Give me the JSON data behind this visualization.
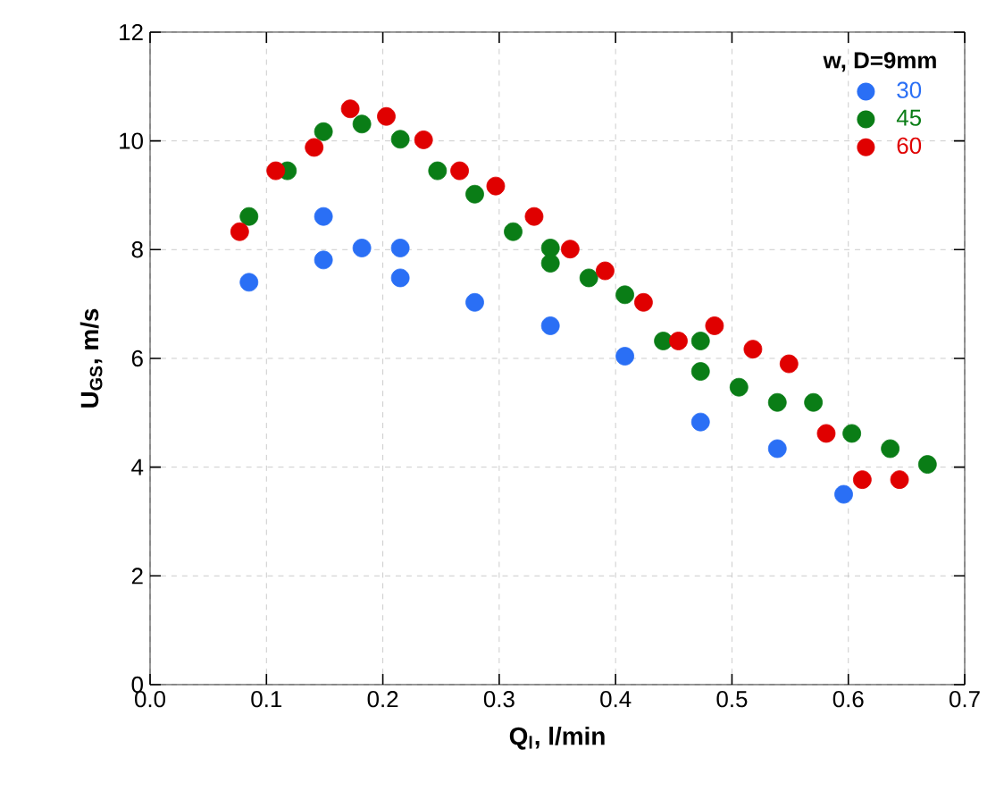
{
  "chart_data": {
    "type": "scatter",
    "xlabel": "**Q$_{l}$, l/min**",
    "ylabel": "**U$_{GS}$, m/s**",
    "legend_title": "**w, D=9mm**",
    "xlim": [
      0,
      0.7
    ],
    "ylim": [
      0,
      12
    ],
    "xticks": [
      {
        "value": 0,
        "label": "0.0"
      },
      {
        "value": 0.1,
        "label": "0.1"
      },
      {
        "value": 0.2,
        "label": "0.2"
      },
      {
        "value": 0.3,
        "label": "0.3"
      },
      {
        "value": 0.4,
        "label": "0.4"
      },
      {
        "value": 0.5,
        "label": "0.5"
      },
      {
        "value": 0.6,
        "label": "0.6"
      },
      {
        "value": 0.7,
        "label": "0.7"
      }
    ],
    "yticks": [
      0,
      2,
      4,
      6,
      8,
      10,
      12
    ],
    "grid": true,
    "legend": "top right",
    "marker": "circle",
    "series": [
      {
        "name": "30",
        "color": "#2a6ff5",
        "x": [
          0.085,
          0.149,
          0.149,
          0.182,
          0.215,
          0.215,
          0.279,
          0.344,
          0.408,
          0.473,
          0.539,
          0.596
        ],
        "values": [
          7.4,
          8.61,
          7.81,
          8.03,
          8.03,
          7.48,
          7.03,
          6.6,
          6.04,
          4.83,
          4.34,
          3.5
        ]
      },
      {
        "name": "45",
        "color": "#0a7d16",
        "x": [
          0.085,
          0.118,
          0.149,
          0.182,
          0.215,
          0.247,
          0.279,
          0.312,
          0.344,
          0.344,
          0.377,
          0.408,
          0.441,
          0.473,
          0.473,
          0.506,
          0.539,
          0.57,
          0.603,
          0.636,
          0.668
        ],
        "values": [
          8.61,
          9.45,
          10.17,
          10.31,
          10.03,
          9.45,
          9.02,
          8.33,
          8.03,
          7.75,
          7.48,
          7.17,
          6.32,
          6.32,
          5.76,
          5.47,
          5.19,
          5.19,
          4.62,
          4.34,
          4.05
        ]
      },
      {
        "name": "60",
        "color": "#e00000",
        "x": [
          0.077,
          0.108,
          0.141,
          0.172,
          0.203,
          0.235,
          0.266,
          0.297,
          0.33,
          0.361,
          0.391,
          0.424,
          0.454,
          0.485,
          0.518,
          0.549,
          0.581,
          0.612,
          0.644
        ],
        "values": [
          8.33,
          9.45,
          9.88,
          10.59,
          10.45,
          10.02,
          9.45,
          9.17,
          8.61,
          8.01,
          7.61,
          7.03,
          6.32,
          6.6,
          6.17,
          5.9,
          4.62,
          3.77,
          3.77
        ]
      }
    ]
  }
}
